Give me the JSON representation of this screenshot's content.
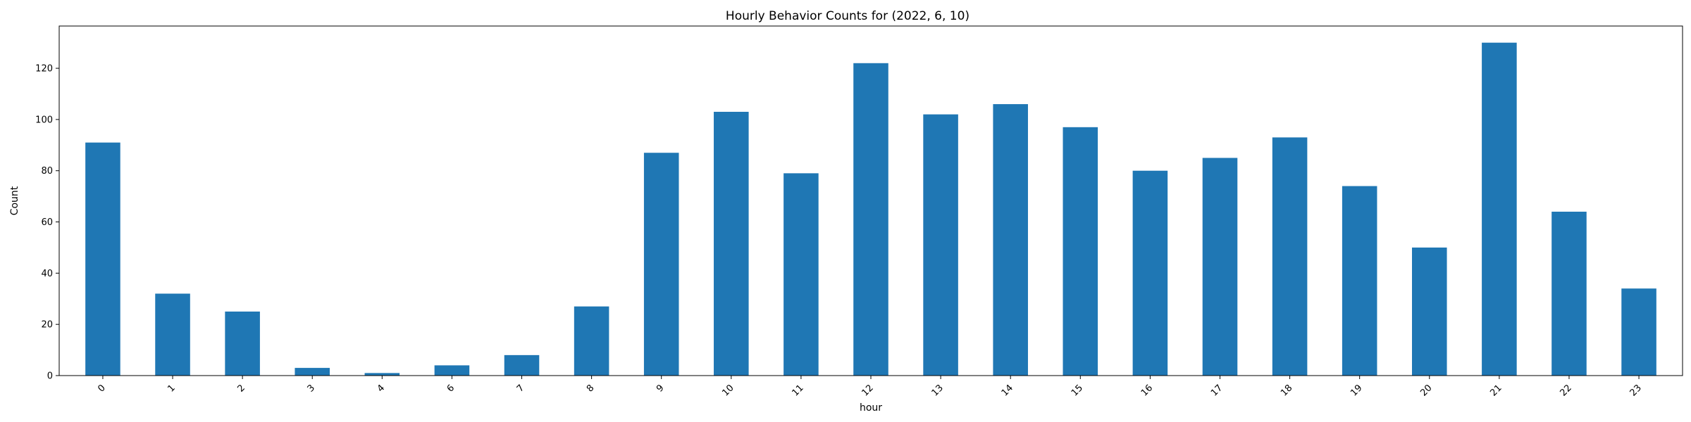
{
  "chart_data": {
    "type": "bar",
    "title": "Hourly Behavior Counts for (2022, 6, 10)",
    "xlabel": "hour",
    "ylabel": "Count",
    "categories": [
      "0",
      "1",
      "2",
      "3",
      "4",
      "6",
      "7",
      "8",
      "9",
      "10",
      "11",
      "12",
      "13",
      "14",
      "15",
      "16",
      "17",
      "18",
      "19",
      "20",
      "21",
      "22",
      "23"
    ],
    "values": [
      91,
      32,
      25,
      3,
      1,
      4,
      8,
      27,
      87,
      103,
      79,
      122,
      102,
      106,
      97,
      80,
      85,
      93,
      74,
      50,
      130,
      64,
      34
    ],
    "ylim": [
      0,
      136.5
    ],
    "yticks": [
      0,
      20,
      40,
      60,
      80,
      100,
      120
    ],
    "grid": false,
    "legend": "none",
    "bar_color": "#1f77b4",
    "tick_label_rotation": 45
  }
}
